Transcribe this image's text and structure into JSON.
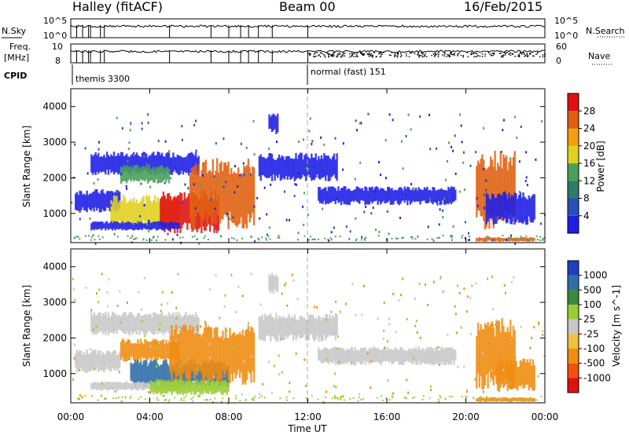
{
  "header": {
    "radar": "Halley (fitACF)",
    "beam": "Beam 00",
    "date": "16/Feb/2015"
  },
  "colors": {
    "power_scale": [
      "#1f1fe6",
      "#2a4fb8",
      "#2f7a6a",
      "#4aa05a",
      "#e0d020",
      "#f0a010",
      "#e06010",
      "#e01010"
    ],
    "velocity_scale": [
      "#e01010",
      "#f05010",
      "#f08c10",
      "#f0c040",
      "#c8c8c8",
      "#9acd32",
      "#3a8a3a",
      "#2f6fa8",
      "#1f3fbf"
    ]
  },
  "top_panels": {
    "nsky_label": "N.Sky",
    "nsky_ticks": [
      "10^5",
      "10^0"
    ],
    "nsearch_label": "N.Search",
    "nsearch_ticks": [
      "10^5",
      "10^0"
    ],
    "freq_label_1": "Freq.",
    "freq_label_2": "[MHz]",
    "freq_ticks": [
      "10",
      "8"
    ],
    "nave_label": "Nave",
    "nave_ticks": [
      "60",
      "0"
    ],
    "cpid_label": "CPID",
    "cpid_1": "themis 3300",
    "cpid_2": "normal (fast) 151"
  },
  "chart_data": [
    {
      "type": "heatmap",
      "title": "",
      "ylabel": "Slant Range [km]",
      "xlabel": "",
      "x_ticks": [
        "00:00",
        "04:00",
        "08:00",
        "12:00",
        "16:00",
        "20:00",
        "00:00"
      ],
      "y_ticks": [
        "1000",
        "2000",
        "3000",
        "4000"
      ],
      "ylim": [
        180,
        4500
      ],
      "colorbar_label": "Power [dB]",
      "colorbar_ticks": [
        "4",
        "8",
        "12",
        "16",
        "20",
        "24",
        "28"
      ],
      "colorbar_range": [
        0,
        30
      ],
      "bands": [
        {
          "t": [
            1.0,
            6.5
          ],
          "r": [
            2150,
            2650
          ],
          "level": "blue"
        },
        {
          "t": [
            2.5,
            5.0
          ],
          "r": [
            1900,
            2300
          ],
          "level": "green"
        },
        {
          "t": [
            0.2,
            2.5
          ],
          "r": [
            1100,
            1600
          ],
          "level": "blue"
        },
        {
          "t": [
            2.0,
            5.5
          ],
          "r": [
            700,
            1400
          ],
          "level": "yellow"
        },
        {
          "t": [
            4.5,
            7.5
          ],
          "r": [
            600,
            1500
          ],
          "level": "red"
        },
        {
          "t": [
            6.0,
            9.3
          ],
          "r": [
            800,
            2300
          ],
          "level": "orange"
        },
        {
          "t": [
            1.0,
            5.5
          ],
          "r": [
            550,
            750
          ],
          "level": "blue"
        },
        {
          "t": [
            9.5,
            13.5
          ],
          "r": [
            2000,
            2600
          ],
          "level": "blue"
        },
        {
          "t": [
            12.5,
            19.5
          ],
          "r": [
            1300,
            1700
          ],
          "level": "blue"
        },
        {
          "t": [
            20.5,
            22.5
          ],
          "r": [
            800,
            2500
          ],
          "level": "orange"
        },
        {
          "t": [
            21.0,
            23.5
          ],
          "r": [
            800,
            1500
          ],
          "level": "blue"
        },
        {
          "t": [
            20.5,
            23.5
          ],
          "r": [
            220,
            320
          ],
          "level": "orange"
        },
        {
          "t": [
            10.0,
            10.5
          ],
          "r": [
            3300,
            3800
          ],
          "level": "blue"
        }
      ]
    },
    {
      "type": "heatmap",
      "title": "",
      "ylabel": "Slant Range [km]",
      "xlabel": "Time UT",
      "x_ticks": [
        "00:00",
        "04:00",
        "08:00",
        "12:00",
        "16:00",
        "20:00",
        "00:00"
      ],
      "y_ticks": [
        "1000",
        "2000",
        "3000",
        "4000"
      ],
      "ylim": [
        180,
        4500
      ],
      "colorbar_label": "Velocity [m s^-1]",
      "colorbar_ticks": [
        "1000",
        "500",
        "100",
        "25",
        "-25",
        "-100",
        "-500",
        "-1000"
      ],
      "colorbar_range": [
        -1200,
        1200
      ],
      "bands": [
        {
          "t": [
            1.0,
            6.5
          ],
          "r": [
            2150,
            2650
          ],
          "level": "gray"
        },
        {
          "t": [
            0.2,
            2.5
          ],
          "r": [
            1100,
            1600
          ],
          "level": "gray"
        },
        {
          "t": [
            2.5,
            5.5
          ],
          "r": [
            1400,
            1900
          ],
          "level": "orange"
        },
        {
          "t": [
            3.0,
            8.0
          ],
          "r": [
            700,
            1300
          ],
          "level": "blue"
        },
        {
          "t": [
            5.0,
            9.3
          ],
          "r": [
            900,
            2200
          ],
          "level": "orange"
        },
        {
          "t": [
            1.0,
            5.5
          ],
          "r": [
            550,
            750
          ],
          "level": "gray"
        },
        {
          "t": [
            4.0,
            8.0
          ],
          "r": [
            450,
            800
          ],
          "level": "green"
        },
        {
          "t": [
            9.5,
            13.5
          ],
          "r": [
            2000,
            2600
          ],
          "level": "gray"
        },
        {
          "t": [
            12.5,
            19.5
          ],
          "r": [
            1300,
            1700
          ],
          "level": "gray"
        },
        {
          "t": [
            20.5,
            22.5
          ],
          "r": [
            800,
            2300
          ],
          "level": "orange"
        },
        {
          "t": [
            21.5,
            23.5
          ],
          "r": [
            600,
            1300
          ],
          "level": "orange"
        },
        {
          "t": [
            20.5,
            23.5
          ],
          "r": [
            220,
            320
          ],
          "level": "orange"
        },
        {
          "t": [
            10.0,
            10.5
          ],
          "r": [
            3300,
            3800
          ],
          "level": "gray"
        }
      ]
    }
  ]
}
